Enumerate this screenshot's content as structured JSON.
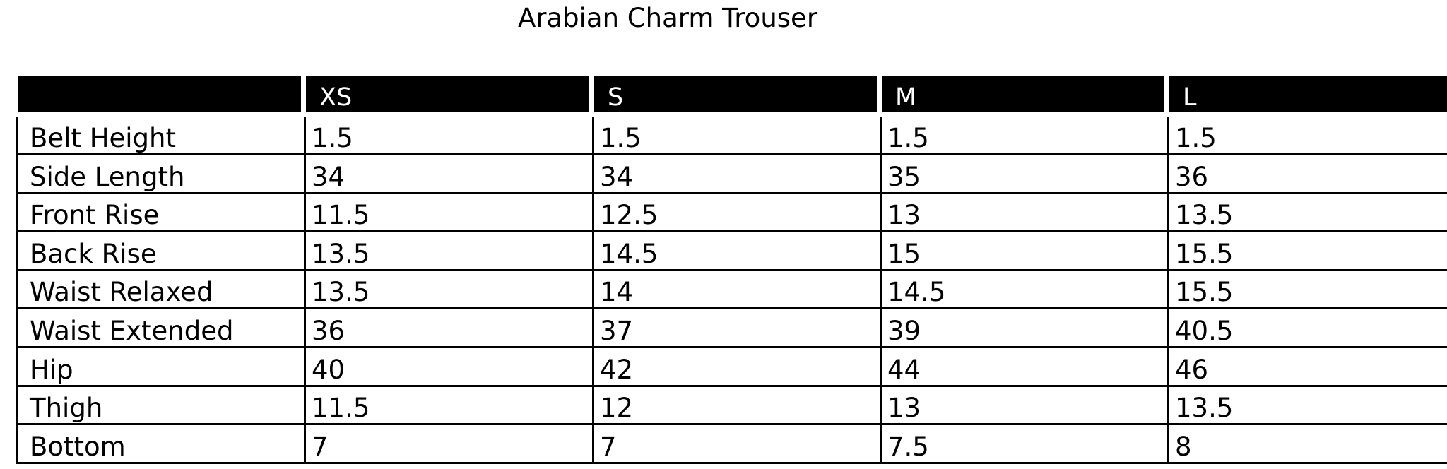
{
  "title": "Arabian Charm Trouser",
  "columns": [
    "",
    "XS",
    "S",
    "M",
    "L"
  ],
  "rows": [
    {
      "label": "Belt Height",
      "values": [
        "1.5",
        "1.5",
        "1.5",
        "1.5"
      ]
    },
    {
      "label": "Side Length",
      "values": [
        "34",
        "34",
        "35",
        "36"
      ]
    },
    {
      "label": "Front Rise",
      "values": [
        "11.5",
        "12.5",
        "13",
        "13.5"
      ]
    },
    {
      "label": "Back Rise",
      "values": [
        "13.5",
        "14.5",
        "15",
        "15.5"
      ]
    },
    {
      "label": "Waist Relaxed",
      "values": [
        "13.5",
        "14",
        "14.5",
        "15.5"
      ]
    },
    {
      "label": "Waist Extended",
      "values": [
        "36",
        "37",
        "39",
        "40.5"
      ]
    },
    {
      "label": "Hip",
      "values": [
        "40",
        "42",
        "44",
        "46"
      ]
    },
    {
      "label": "Thigh",
      "values": [
        "11.5",
        "12",
        "13",
        "13.5"
      ]
    },
    {
      "label": "Bottom",
      "values": [
        "7",
        "7",
        "7.5",
        "8"
      ]
    }
  ]
}
